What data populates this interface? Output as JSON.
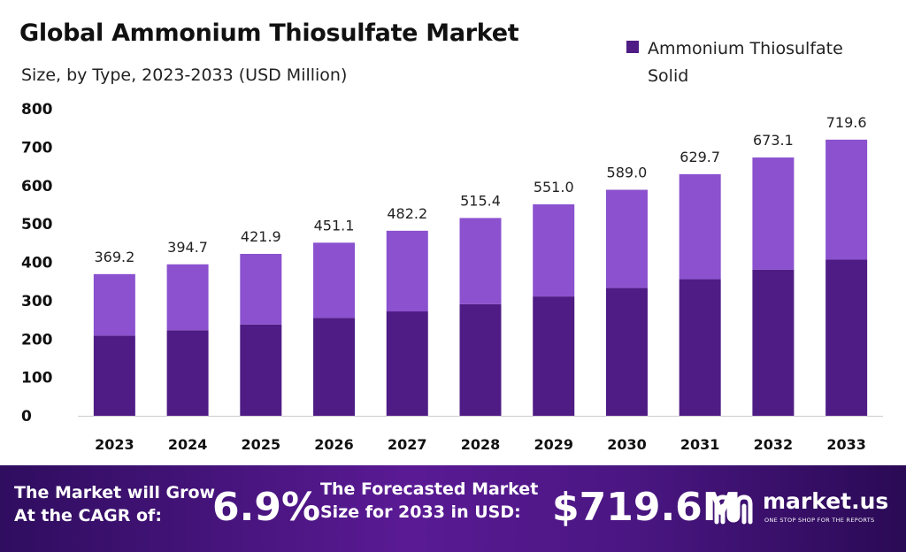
{
  "chart_data": {
    "type": "bar",
    "stacked": true,
    "title": "Global Ammonium Thiosulfate Market",
    "subtitle": "Size, by Type, 2023-2033 (USD Million)",
    "categories": [
      "2023",
      "2024",
      "2025",
      "2026",
      "2027",
      "2028",
      "2029",
      "2030",
      "2031",
      "2032",
      "2033"
    ],
    "totals": [
      369.2,
      394.7,
      421.9,
      451.1,
      482.2,
      515.4,
      551.0,
      589.0,
      629.7,
      673.1,
      719.6
    ],
    "total_labels": [
      "369.2",
      "394.7",
      "421.9",
      "451.1",
      "482.2",
      "515.4",
      "551.0",
      "589.0",
      "629.7",
      "673.1",
      "719.6"
    ],
    "series": [
      {
        "name": "Ammonium Thiosulfate Solid",
        "color": "#4f1c85",
        "values": [
          209,
          223,
          238,
          255,
          272,
          291,
          311,
          333,
          356,
          381,
          407
        ]
      },
      {
        "color": "#8b51cf",
        "values": [
          160.2,
          171.7,
          183.9,
          196.1,
          210.2,
          224.4,
          240.0,
          256.0,
          273.7,
          292.1,
          312.6
        ]
      }
    ],
    "yticks": [
      0,
      100,
      200,
      300,
      400,
      500,
      600,
      700,
      800
    ],
    "ylim": [
      0,
      800
    ],
    "grid": false,
    "legend_position": "top-right",
    "xlabel": "",
    "ylabel": ""
  },
  "banner": {
    "cagr_label_line1": "The Market will Grow",
    "cagr_label_line2": "At the CAGR of:",
    "cagr_value": "6.9%",
    "size_label_line1": "The Forecasted Market",
    "size_label_line2": "Size for 2033 in USD:",
    "size_value": "$719.6M",
    "logo_text": "market.us",
    "logo_tagline": "ONE STOP SHOP FOR THE REPORTS",
    "logo_icon": "market-us-logo-icon"
  }
}
